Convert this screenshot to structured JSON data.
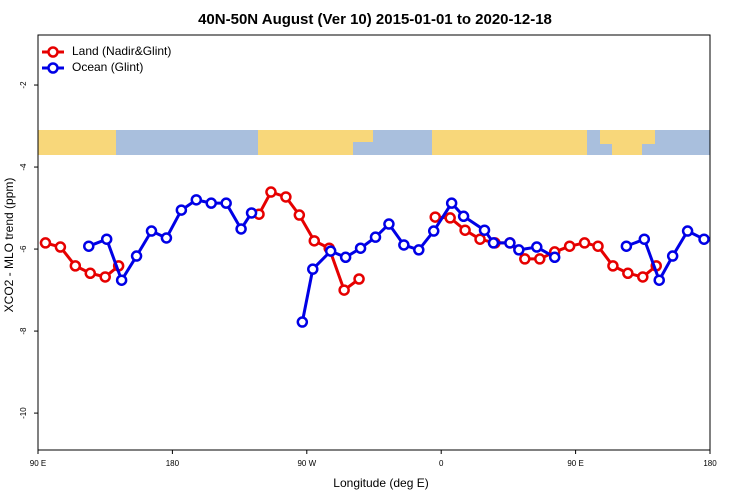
{
  "chart_data": {
    "type": "line",
    "title": "40N-50N August (Ver 10)   2015-01-01 to 2020-12-18",
    "x_label": "Longitude (deg E)",
    "y_label": "XCO2 - MLO trend (ppm)",
    "xlim": [
      90,
      540
    ],
    "ylim": [
      -10.9,
      -0.78
    ],
    "xticks": [
      {
        "value": 90,
        "label": "90 E"
      },
      {
        "value": 180,
        "label": "180"
      },
      {
        "value": 270,
        "label": "90 W"
      },
      {
        "value": 360,
        "label": "0"
      },
      {
        "value": 450,
        "label": "90 E"
      },
      {
        "value": 540,
        "label": "180"
      }
    ],
    "yticks": [
      -2,
      -4,
      -6,
      -8,
      -10
    ],
    "legend": "topleft",
    "series": [
      {
        "name": "Land (Nadir&Glint)",
        "color": "#e60000",
        "x": [
          95,
          105,
          115,
          125,
          135,
          144,
          null,
          238,
          246,
          256,
          265,
          275,
          285,
          295,
          305,
          null,
          356,
          366,
          376,
          386,
          396,
          406,
          416,
          426,
          436,
          446,
          456,
          465,
          475,
          485,
          495,
          504
        ],
        "values": [
          -5.85,
          -5.95,
          -6.41,
          -6.59,
          -6.68,
          -6.41,
          null,
          -5.15,
          -4.61,
          -4.73,
          -5.17,
          -5.8,
          -5.98,
          -7.0,
          -6.73,
          null,
          -5.22,
          -5.24,
          -5.54,
          -5.76,
          -5.85,
          -5.85,
          -6.24,
          -6.24,
          -6.07,
          -5.93,
          -5.85,
          -5.93,
          -6.41,
          -6.59,
          -6.68,
          -6.41
        ]
      },
      {
        "name": "Ocean (Glint)",
        "color": "#0000e6",
        "x": [
          124,
          136,
          146,
          156,
          166,
          176,
          186,
          196,
          206,
          216,
          226,
          233,
          null,
          267,
          274,
          286,
          296,
          306,
          316,
          325,
          335,
          345,
          355,
          367,
          375,
          389,
          395,
          406,
          412,
          424,
          436,
          null,
          484,
          496,
          506,
          515,
          525,
          536
        ],
        "values": [
          -5.93,
          -5.76,
          -6.76,
          -6.17,
          -5.56,
          -5.73,
          -5.05,
          -4.8,
          -4.88,
          -4.88,
          -5.51,
          -5.12,
          null,
          -7.78,
          -6.49,
          -6.05,
          -6.2,
          -5.98,
          -5.71,
          -5.39,
          -5.9,
          -6.02,
          -5.56,
          -4.88,
          -5.2,
          -5.54,
          -5.85,
          -5.85,
          -6.02,
          -5.95,
          -6.2,
          null,
          -5.93,
          -5.76,
          -6.76,
          -6.17,
          -5.56,
          -5.76
        ]
      }
    ]
  }
}
